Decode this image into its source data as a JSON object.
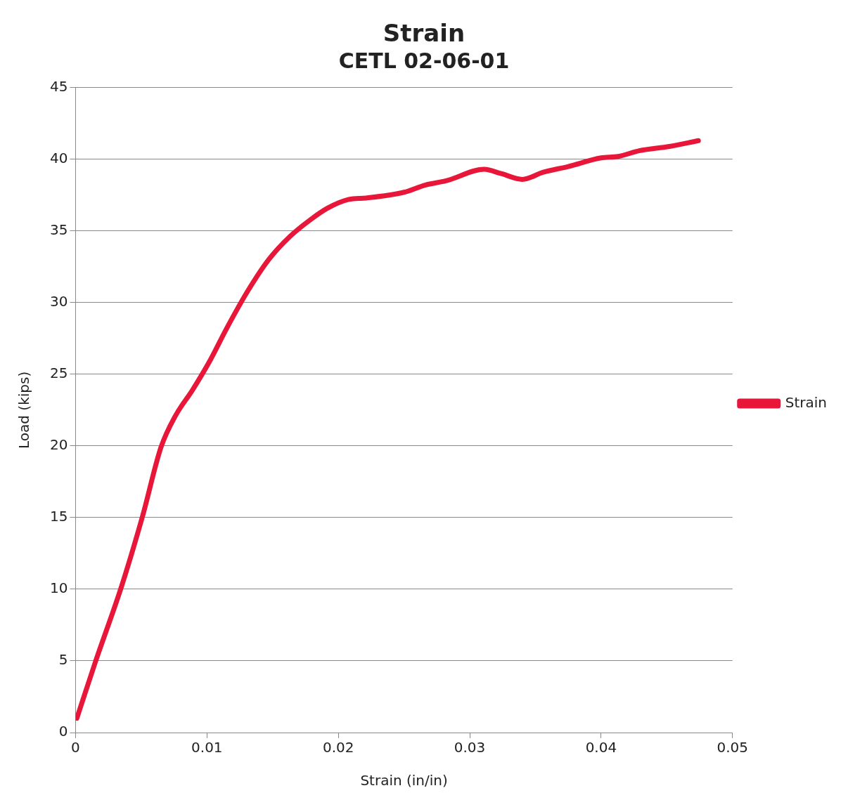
{
  "chart_data": {
    "type": "line",
    "title": "Strain",
    "subtitle": "CETL 02-06-01",
    "xlabel": "Strain (in/in)",
    "ylabel": "Load (kips)",
    "xlim": [
      0,
      0.05
    ],
    "xticks": [
      0,
      0.01,
      0.02,
      0.03,
      0.04,
      0.05
    ],
    "ylim": [
      0,
      45
    ],
    "yticks": [
      0,
      5,
      10,
      15,
      20,
      25,
      30,
      35,
      40,
      45
    ],
    "grid": "y",
    "legend": "right",
    "marker": "none",
    "line_style": "solid",
    "series": [
      {
        "name": "Strain",
        "color": "#e8173a",
        "x": [
          0.0001,
          0.0015,
          0.0035,
          0.0051,
          0.0065,
          0.0076,
          0.0089,
          0.0102,
          0.0115,
          0.0131,
          0.0147,
          0.0163,
          0.0179,
          0.0192,
          0.0208,
          0.0221,
          0.025,
          0.0266,
          0.0282,
          0.0311,
          0.0324,
          0.034,
          0.0356,
          0.0375,
          0.04,
          0.0413,
          0.0429,
          0.0452,
          0.0474
        ],
        "values": [
          1.0,
          4.9,
          10.2,
          15.1,
          19.9,
          22.1,
          23.9,
          25.9,
          28.2,
          30.8,
          33.0,
          34.6,
          35.8,
          36.6,
          37.2,
          37.3,
          37.7,
          38.2,
          38.5,
          39.3,
          39.0,
          38.6,
          39.1,
          39.5,
          40.1,
          40.2,
          40.6,
          40.9,
          41.3
        ]
      }
    ]
  }
}
